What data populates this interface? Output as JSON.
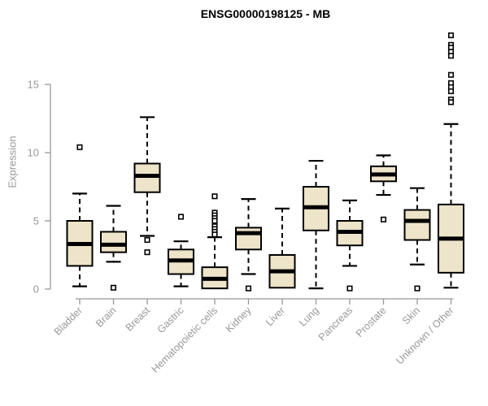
{
  "colors": {
    "box_fill": "#EDE4C9",
    "box_stroke": "#000000",
    "median": "#000000",
    "axis": "#989898",
    "tick_text": "#989898",
    "title_text": "#000000",
    "background": "#FFFFFF"
  },
  "chart_data": {
    "type": "boxplot",
    "title": "ENSG00000198125 - MB",
    "xlabel": "",
    "ylabel": "Expression",
    "yticks": [
      0,
      5,
      10,
      15
    ],
    "ylim": [
      0,
      19
    ],
    "grid": false,
    "legend": "none",
    "categories": [
      "Bladder",
      "Brain",
      "Breast",
      "Gastric",
      "Hematopoietic cells",
      "Kidney",
      "Liver",
      "Lung",
      "Pancreas",
      "Prostate",
      "Skin",
      "Unknown / Other"
    ],
    "series": [
      {
        "name": "Bladder",
        "low": 0.2,
        "q1": 1.7,
        "median": 3.3,
        "q3": 5.0,
        "high": 7.0,
        "outliers": [
          10.4
        ]
      },
      {
        "name": "Brain",
        "low": 2.0,
        "q1": 2.7,
        "median": 3.25,
        "q3": 4.2,
        "high": 6.1,
        "outliers": [
          0.1
        ]
      },
      {
        "name": "Breast",
        "low": 3.9,
        "q1": 7.1,
        "median": 8.3,
        "q3": 9.2,
        "high": 12.6,
        "outliers": [
          3.6,
          2.7
        ]
      },
      {
        "name": "Gastric",
        "low": 0.2,
        "q1": 1.1,
        "median": 2.1,
        "q3": 2.9,
        "high": 3.5,
        "outliers": [
          5.3
        ]
      },
      {
        "name": "Hematopoietic cells",
        "low": 0.05,
        "q1": 0.05,
        "median": 0.75,
        "q3": 1.6,
        "high": 3.8,
        "outliers": [
          6.8,
          5.6,
          5.4,
          5.2,
          5.0,
          4.6,
          4.4,
          4.2,
          4.0
        ]
      },
      {
        "name": "Kidney",
        "low": 1.1,
        "q1": 2.9,
        "median": 4.1,
        "q3": 4.5,
        "high": 6.6,
        "outliers": [
          0.05
        ]
      },
      {
        "name": "Liver",
        "low": 0.1,
        "q1": 0.1,
        "median": 1.3,
        "q3": 2.5,
        "high": 5.9,
        "outliers": []
      },
      {
        "name": "Lung",
        "low": 0.05,
        "q1": 4.3,
        "median": 6.0,
        "q3": 7.5,
        "high": 9.4,
        "outliers": []
      },
      {
        "name": "Pancreas",
        "low": 1.7,
        "q1": 3.2,
        "median": 4.2,
        "q3": 5.0,
        "high": 6.5,
        "outliers": [
          0.05
        ]
      },
      {
        "name": "Prostate",
        "low": 6.9,
        "q1": 7.9,
        "median": 8.4,
        "q3": 9.0,
        "high": 9.8,
        "outliers": [
          5.1
        ]
      },
      {
        "name": "Skin",
        "low": 1.8,
        "q1": 3.6,
        "median": 5.0,
        "q3": 5.8,
        "high": 7.4,
        "outliers": [
          0.05
        ]
      },
      {
        "name": "Unknown / Other",
        "low": 0.1,
        "q1": 1.2,
        "median": 3.7,
        "q3": 6.2,
        "high": 12.1,
        "outliers": [
          18.6,
          17.9,
          17.7,
          17.4,
          17.1,
          15.7,
          15.1,
          14.8,
          14.5,
          13.9,
          13.7
        ]
      }
    ]
  }
}
